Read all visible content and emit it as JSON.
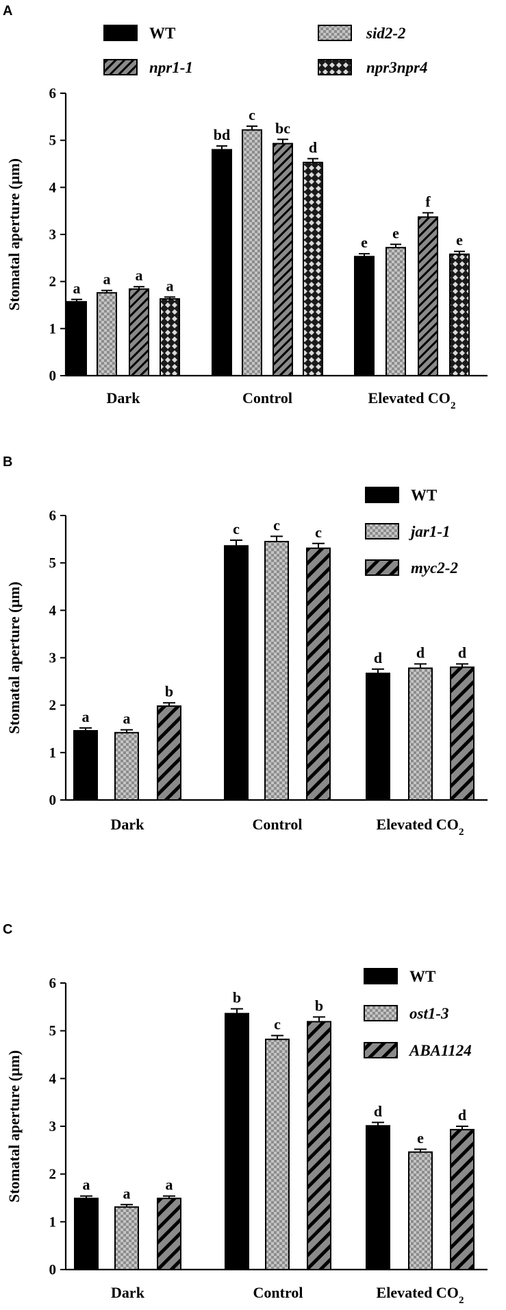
{
  "colors": {
    "black": "#000000",
    "gray": "#8c8c8c",
    "gray_light": "#bdbdbd",
    "white": "#ffffff"
  },
  "chart_data": [
    {
      "panel": "A",
      "type": "bar",
      "categories": [
        "Dark",
        "Control",
        "Elevated CO2"
      ],
      "category_main": [
        "Dark",
        "Control",
        "Elevated CO"
      ],
      "category_sub": [
        "",
        "",
        "2"
      ],
      "ylabel": "Stomatal aperture (μm)",
      "ylim": [
        0,
        6
      ],
      "yticks": [
        "0",
        "1",
        "2",
        "3",
        "4",
        "5",
        "6"
      ],
      "legend_position": "top",
      "series": [
        {
          "name": "WT",
          "italic": false,
          "pattern": "solid",
          "values": [
            1.57,
            4.8,
            2.53
          ],
          "errors": [
            0.05,
            0.08,
            0.06
          ],
          "letters": [
            "a",
            "bd",
            "e"
          ]
        },
        {
          "name": "sid2-2",
          "italic": true,
          "pattern": "checker",
          "values": [
            1.76,
            5.22,
            2.72
          ],
          "errors": [
            0.05,
            0.08,
            0.07
          ],
          "letters": [
            "a",
            "c",
            "e"
          ]
        },
        {
          "name": "npr1-1",
          "italic": true,
          "pattern": "diag-thin",
          "values": [
            1.84,
            4.93,
            3.37
          ],
          "errors": [
            0.05,
            0.09,
            0.09
          ],
          "letters": [
            "a",
            "bc",
            "f"
          ]
        },
        {
          "name": "npr3npr4",
          "italic": true,
          "pattern": "diamond",
          "values": [
            1.63,
            4.53,
            2.58
          ],
          "errors": [
            0.04,
            0.08,
            0.06
          ],
          "letters": [
            "a",
            "d",
            "e"
          ]
        }
      ]
    },
    {
      "panel": "B",
      "type": "bar",
      "categories": [
        "Dark",
        "Control",
        "Elevated CO2"
      ],
      "category_main": [
        "Dark",
        "Control",
        "Elevated CO"
      ],
      "category_sub": [
        "",
        "",
        "2"
      ],
      "ylabel": "Stomatal aperture (μm)",
      "ylim": [
        0,
        6
      ],
      "yticks": [
        "0",
        "1",
        "2",
        "3",
        "4",
        "5",
        "6"
      ],
      "legend_position": "top-right",
      "series": [
        {
          "name": "WT",
          "italic": false,
          "pattern": "solid",
          "values": [
            1.46,
            5.36,
            2.67
          ],
          "errors": [
            0.06,
            0.12,
            0.09
          ],
          "letters": [
            "a",
            "c",
            "d"
          ]
        },
        {
          "name": "jar1-1",
          "italic": true,
          "pattern": "checker",
          "values": [
            1.42,
            5.45,
            2.78
          ],
          "errors": [
            0.06,
            0.11,
            0.09
          ],
          "letters": [
            "a",
            "c",
            "d"
          ]
        },
        {
          "name": "myc2-2",
          "italic": true,
          "pattern": "diag-wide",
          "values": [
            1.98,
            5.31,
            2.8
          ],
          "errors": [
            0.07,
            0.1,
            0.07
          ],
          "letters": [
            "b",
            "c",
            "d"
          ]
        }
      ]
    },
    {
      "panel": "C",
      "type": "bar",
      "categories": [
        "Dark",
        "Control",
        "Elevated CO2"
      ],
      "category_main": [
        "Dark",
        "Control",
        "Elevated CO"
      ],
      "category_sub": [
        "",
        "",
        "2"
      ],
      "ylabel": "Stomatal aperture (μm)",
      "ylim": [
        0,
        6
      ],
      "yticks": [
        "0",
        "1",
        "2",
        "3",
        "4",
        "5",
        "6"
      ],
      "legend_position": "top-right",
      "series": [
        {
          "name": "WT",
          "italic": false,
          "pattern": "solid",
          "values": [
            1.49,
            5.36,
            3.01
          ],
          "errors": [
            0.05,
            0.1,
            0.07
          ],
          "letters": [
            "a",
            "b",
            "d"
          ]
        },
        {
          "name": "ost1-3",
          "italic": true,
          "pattern": "checker",
          "values": [
            1.31,
            4.82,
            2.46
          ],
          "errors": [
            0.05,
            0.08,
            0.06
          ],
          "letters": [
            "a",
            "c",
            "e"
          ]
        },
        {
          "name": "ABA1124",
          "italic": true,
          "pattern": "diag-wide",
          "values": [
            1.49,
            5.19,
            2.93
          ],
          "errors": [
            0.05,
            0.1,
            0.07
          ],
          "letters": [
            "a",
            "b",
            "d"
          ]
        }
      ]
    }
  ]
}
